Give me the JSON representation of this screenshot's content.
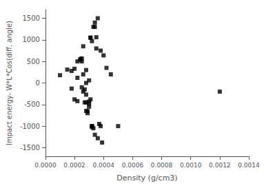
{
  "chart_data": {
    "type": "scatter",
    "xlabel": "Density (g/cm3)",
    "ylabel": "Impact energy- W*L*Cos(diff. angle)",
    "marker": "square",
    "color": "black",
    "xlim": [
      0.0,
      0.0014
    ],
    "ylim": [
      -1700,
      1700
    ],
    "xticks": [
      {
        "value": 0.0,
        "label": "0.0000"
      },
      {
        "value": 0.0002,
        "label": "0.0002"
      },
      {
        "value": 0.0004,
        "label": "0.0004"
      },
      {
        "value": 0.0006,
        "label": "0.0006"
      },
      {
        "value": 0.0008,
        "label": "0.0008"
      },
      {
        "value": 0.001,
        "label": "0.0010"
      },
      {
        "value": 0.0012,
        "label": "0.0012"
      },
      {
        "value": 0.0014,
        "label": "0.0014"
      }
    ],
    "yticks": [
      -1500,
      -1000,
      -500,
      0,
      500,
      1000,
      1500
    ],
    "x": [
      0.0001,
      0.00015,
      0.00018,
      0.00018,
      0.0002,
      0.0002,
      0.00022,
      0.00022,
      0.00022,
      0.00024,
      0.00024,
      0.00025,
      0.00025,
      0.00025,
      0.00026,
      0.00026,
      0.00026,
      0.00027,
      0.00027,
      0.00028,
      0.00028,
      0.00028,
      0.00028,
      0.00028,
      0.00029,
      0.00029,
      0.0003,
      0.0003,
      0.0003,
      0.0003,
      0.00031,
      0.00031,
      0.00031,
      0.00032,
      0.00032,
      0.00032,
      0.00032,
      0.00033,
      0.00033,
      0.00034,
      0.00034,
      0.00034,
      0.00035,
      0.00035,
      0.00036,
      0.00036,
      0.00037,
      0.00038,
      0.00038,
      0.00039,
      0.0004,
      0.00042,
      0.00045,
      0.0005,
      0.0012
    ],
    "values": [
      180,
      310,
      280,
      -130,
      -380,
      330,
      500,
      -420,
      120,
      540,
      555,
      -100,
      500,
      570,
      850,
      -200,
      200,
      -450,
      -150,
      -650,
      -450,
      -270,
      0,
      300,
      -700,
      -650,
      -550,
      -480,
      -430,
      60,
      -380,
      1050,
      1050,
      -1000,
      -1020,
      -1000,
      970,
      -1050,
      1300,
      1400,
      1300,
      -1200,
      1060,
      800,
      1500,
      -1280,
      -950,
      -1000,
      750,
      -1380,
      640,
      350,
      200,
      -1000,
      -200
    ],
    "grid": false
  }
}
